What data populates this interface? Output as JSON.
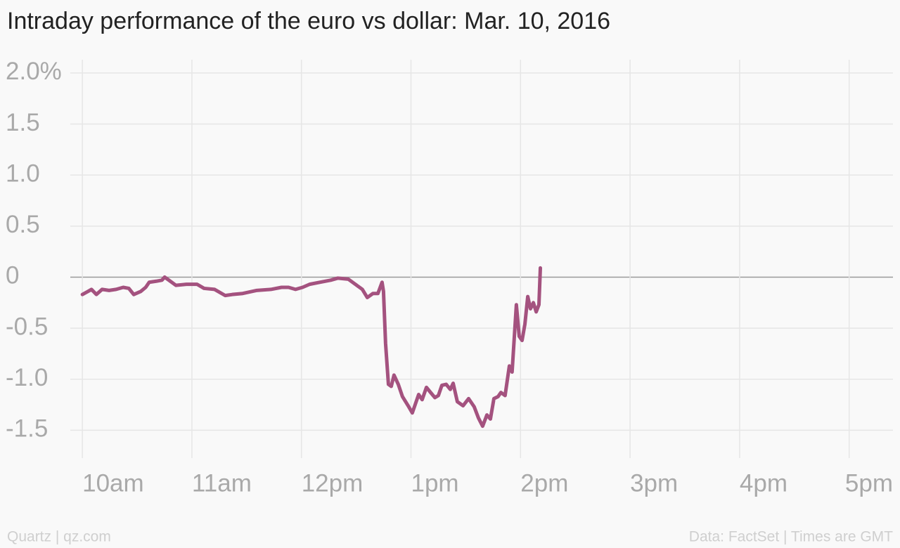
{
  "chart_data": {
    "type": "line",
    "title": "Intraday performance of the euro vs dollar: Mar. 10, 2016",
    "source_left": "Quartz | qz.com",
    "source_right": "Data: FactSet | Times are GMT",
    "color": "#a4527f",
    "grid": true,
    "x": [
      10.0,
      10.051,
      10.083,
      10.128,
      10.18,
      10.244,
      10.308,
      10.373,
      10.424,
      10.469,
      10.533,
      10.578,
      10.61,
      10.674,
      10.726,
      10.751,
      10.79,
      10.854,
      10.95,
      11.047,
      11.111,
      11.207,
      11.304,
      11.368,
      11.464,
      11.593,
      11.721,
      11.818,
      11.882,
      11.946,
      12.01,
      12.075,
      12.171,
      12.267,
      12.331,
      12.428,
      12.492,
      12.556,
      12.601,
      12.653,
      12.698,
      12.736,
      12.749,
      12.768,
      12.794,
      12.82,
      12.845,
      12.884,
      12.922,
      12.974,
      13.012,
      13.07,
      13.102,
      13.141,
      13.179,
      13.218,
      13.25,
      13.282,
      13.321,
      13.359,
      13.385,
      13.423,
      13.475,
      13.526,
      13.577,
      13.616,
      13.654,
      13.693,
      13.725,
      13.757,
      13.795,
      13.821,
      13.859,
      13.898,
      13.923,
      13.962,
      13.988,
      14.014,
      14.04,
      14.066,
      14.091,
      14.117,
      14.143,
      14.168,
      14.181
    ],
    "series": [
      {
        "name": "EUR/USD",
        "color": "#a4527f",
        "values": [
          -0.17,
          -0.14,
          -0.12,
          -0.17,
          -0.12,
          -0.13,
          -0.12,
          -0.1,
          -0.11,
          -0.17,
          -0.14,
          -0.1,
          -0.05,
          -0.04,
          -0.03,
          0.0,
          -0.03,
          -0.08,
          -0.07,
          -0.07,
          -0.11,
          -0.12,
          -0.18,
          -0.17,
          -0.16,
          -0.13,
          -0.12,
          -0.1,
          -0.1,
          -0.12,
          -0.1,
          -0.07,
          -0.05,
          -0.03,
          -0.01,
          -0.02,
          -0.07,
          -0.12,
          -0.2,
          -0.16,
          -0.16,
          -0.05,
          -0.14,
          -0.65,
          -1.05,
          -1.07,
          -0.96,
          -1.05,
          -1.17,
          -1.26,
          -1.33,
          -1.15,
          -1.2,
          -1.08,
          -1.13,
          -1.18,
          -1.16,
          -1.06,
          -1.05,
          -1.1,
          -1.04,
          -1.22,
          -1.26,
          -1.19,
          -1.27,
          -1.38,
          -1.46,
          -1.35,
          -1.39,
          -1.19,
          -1.17,
          -1.13,
          -1.16,
          -0.87,
          -0.93,
          -0.27,
          -0.58,
          -0.62,
          -0.46,
          -0.19,
          -0.31,
          -0.25,
          -0.34,
          -0.27,
          0.09
        ]
      }
    ],
    "xlim": [
      9.89,
      17.4
    ],
    "xticks": [
      {
        "value": 10,
        "label": "10am"
      },
      {
        "value": 11,
        "label": "11am"
      },
      {
        "value": 12,
        "label": "12pm"
      },
      {
        "value": 13,
        "label": "1pm"
      },
      {
        "value": 14,
        "label": "2pm"
      },
      {
        "value": 15,
        "label": "3pm"
      },
      {
        "value": 16,
        "label": "4pm"
      },
      {
        "value": 17,
        "label": "5pm"
      }
    ],
    "ylim": [
      -1.69,
      2.13
    ],
    "yticks": [
      {
        "value": 2,
        "label": "2.0%"
      },
      1.5,
      {
        "value": 1,
        "label": "1.0"
      },
      0.5,
      0,
      -0.5,
      {
        "value": -1,
        "label": "-1.0"
      },
      -1.5
    ]
  }
}
